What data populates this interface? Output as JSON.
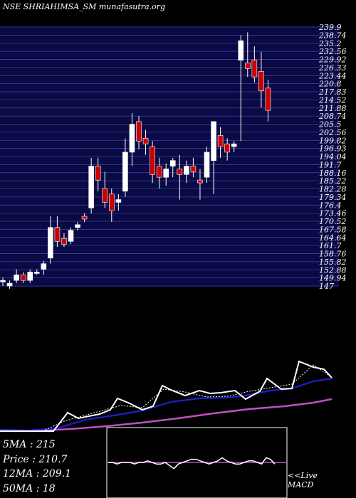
{
  "title": "NSE SHRIAHIMSA_SM munafasutra.org",
  "stats": {
    "ma5_label": "5MA :",
    "ma5_value": "215",
    "price_label": "Price :",
    "price_value": "210.7",
    "ma12_label": "12MA :",
    "ma12_value": "209.1",
    "ma50_label": "50MA :",
    "ma50_value": "18"
  },
  "macd_label_1": "<<Live",
  "macd_label_2": "MACD",
  "colors": {
    "background": "#000000",
    "band": "#0a0a44",
    "band_line": "#3a3ad0",
    "up": "#ffffff",
    "down": "#cc0000",
    "ma_short": "#ffffff",
    "ma_mid": "#1e1ecc",
    "ma_long": "#c050c0"
  },
  "chart_data": {
    "type": "candlestick",
    "y_range": [
      147,
      239.9
    ],
    "price_levels": [
      "239.9",
      "238.74",
      "235.2",
      "232.56",
      "229.92",
      "226.33",
      "223.44",
      "220.8",
      "217.83",
      "214.52",
      "211.88",
      "208.74",
      "205.5",
      "202.56",
      "199.82",
      "196.93",
      "194.04",
      "191.7",
      "188.16",
      "185.22",
      "182.28",
      "179.34",
      "176.4",
      "173.46",
      "170.52",
      "167.58",
      "164.64",
      "161.7",
      "158.76",
      "155.82",
      "152.88",
      "149.94",
      "147"
    ],
    "candles": [
      {
        "o": 149,
        "h": 150,
        "l": 147,
        "c": 149
      },
      {
        "o": 147,
        "h": 149,
        "l": 146,
        "c": 148
      },
      {
        "o": 149,
        "h": 153,
        "l": 148,
        "c": 151
      },
      {
        "o": 151,
        "h": 152,
        "l": 148,
        "c": 149
      },
      {
        "o": 149,
        "h": 153,
        "l": 148,
        "c": 152
      },
      {
        "o": 152,
        "h": 153,
        "l": 151,
        "c": 152
      },
      {
        "o": 153,
        "h": 156,
        "l": 151,
        "c": 155
      },
      {
        "o": 157,
        "h": 172,
        "l": 155,
        "c": 168
      },
      {
        "o": 168,
        "h": 172,
        "l": 161,
        "c": 163
      },
      {
        "o": 164,
        "h": 166,
        "l": 161,
        "c": 162
      },
      {
        "o": 163,
        "h": 168,
        "l": 162,
        "c": 167
      },
      {
        "o": 168,
        "h": 170,
        "l": 167,
        "c": 169
      },
      {
        "o": 172,
        "h": 173,
        "l": 170,
        "c": 171
      },
      {
        "o": 175,
        "h": 193,
        "l": 173,
        "c": 190
      },
      {
        "o": 190,
        "h": 193,
        "l": 181,
        "c": 185
      },
      {
        "o": 182,
        "h": 188,
        "l": 175,
        "c": 177
      },
      {
        "o": 180,
        "h": 182,
        "l": 170,
        "c": 174
      },
      {
        "o": 177,
        "h": 180,
        "l": 174,
        "c": 178
      },
      {
        "o": 181,
        "h": 200,
        "l": 179,
        "c": 195
      },
      {
        "o": 195,
        "h": 209,
        "l": 190,
        "c": 205
      },
      {
        "o": 206,
        "h": 208,
        "l": 196,
        "c": 199
      },
      {
        "o": 200,
        "h": 203,
        "l": 194,
        "c": 198
      },
      {
        "o": 197,
        "h": 199,
        "l": 184,
        "c": 187
      },
      {
        "o": 190,
        "h": 193,
        "l": 182,
        "c": 186
      },
      {
        "o": 186,
        "h": 191,
        "l": 183,
        "c": 189
      },
      {
        "o": 190,
        "h": 193,
        "l": 186,
        "c": 192
      },
      {
        "o": 189,
        "h": 194,
        "l": 178,
        "c": 187
      },
      {
        "o": 187,
        "h": 192,
        "l": 184,
        "c": 190
      },
      {
        "o": 190,
        "h": 193,
        "l": 186,
        "c": 188
      },
      {
        "o": 185,
        "h": 189,
        "l": 178,
        "c": 184
      },
      {
        "o": 186,
        "h": 197,
        "l": 184,
        "c": 195
      },
      {
        "o": 192,
        "h": 206,
        "l": 180,
        "c": 206
      },
      {
        "o": 201,
        "h": 204,
        "l": 193,
        "c": 197
      },
      {
        "o": 198,
        "h": 200,
        "l": 192,
        "c": 195
      },
      {
        "o": 197,
        "h": 199,
        "l": 195,
        "c": 198
      },
      {
        "o": 228,
        "h": 237,
        "l": 199,
        "c": 235
      },
      {
        "o": 227,
        "h": 238,
        "l": 222,
        "c": 225
      },
      {
        "o": 228,
        "h": 233,
        "l": 220,
        "c": 222
      },
      {
        "o": 224,
        "h": 231,
        "l": 211,
        "c": 217
      },
      {
        "o": 218,
        "h": 221,
        "l": 206,
        "c": 210
      }
    ],
    "macd": [
      0,
      0,
      -1,
      0,
      0,
      0,
      -1,
      0,
      0,
      1,
      0,
      -1,
      -1,
      0,
      -2,
      -4,
      -1,
      0,
      1,
      2,
      2,
      1,
      0,
      -1,
      0,
      1,
      3,
      1,
      0,
      -1,
      -1,
      0,
      1,
      1,
      0,
      -1,
      3,
      2,
      -1
    ]
  }
}
